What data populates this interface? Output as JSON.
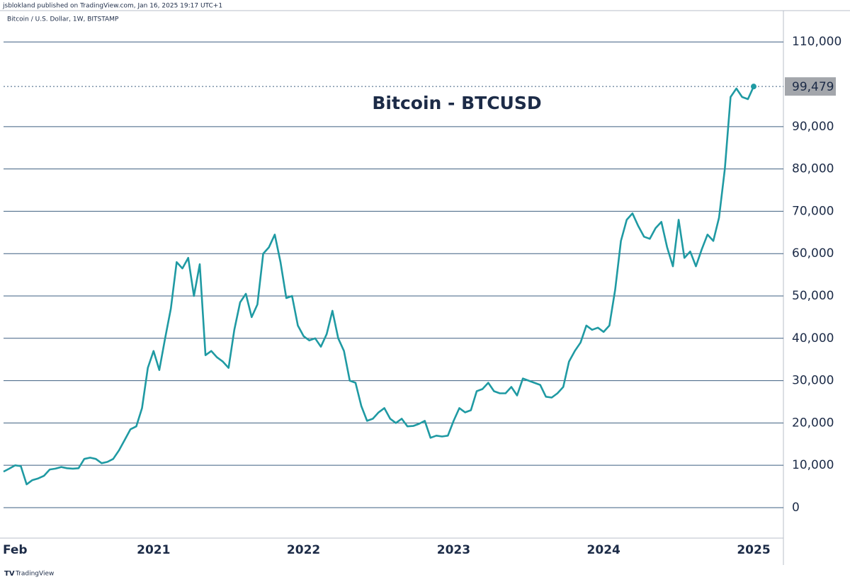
{
  "header": {
    "publisher": "jsblokland published on TradingView.com, Jan 16, 2025 19:17 UTC+1",
    "symbol": "Bitcoin / U.S. Dollar, 1W, BITSTAMP",
    "brand": "TradingView"
  },
  "chart_data": {
    "type": "line",
    "title": "Bitcoin - BTCUSD",
    "categories": [
      null,
      null,
      "Feb",
      null,
      null,
      null,
      null,
      null,
      null,
      null,
      null,
      null,
      null,
      null,
      null,
      null,
      null,
      null,
      null,
      null,
      null,
      null,
      null,
      null,
      null,
      null,
      "2021",
      null,
      null,
      null,
      null,
      null,
      null,
      null,
      null,
      null,
      null,
      null,
      null,
      null,
      null,
      null,
      null,
      null,
      null,
      null,
      null,
      null,
      null,
      null,
      null,
      null,
      "2022",
      null,
      null,
      null,
      null,
      null,
      null,
      null,
      null,
      null,
      null,
      null,
      null,
      null,
      null,
      null,
      null,
      null,
      null,
      null,
      null,
      null,
      null,
      null,
      null,
      null,
      "2023",
      null,
      null,
      null,
      null,
      null,
      null,
      null,
      null,
      null,
      null,
      null,
      null,
      null,
      null,
      null,
      null,
      null,
      null,
      null,
      null,
      null,
      null,
      null,
      null,
      null,
      "2024",
      null,
      null,
      null,
      null,
      null,
      null,
      null,
      null,
      null,
      null,
      null,
      null,
      null,
      null,
      null,
      null,
      null,
      null,
      null,
      null,
      null,
      null,
      null,
      null,
      null,
      "2025"
    ],
    "series": [
      {
        "name": "BTCUSD",
        "color": "#1f9aa3",
        "values": [
          8500,
          9200,
          10000,
          9800,
          5500,
          6500,
          6900,
          7500,
          9000,
          9200,
          9600,
          9300,
          9200,
          9300,
          11500,
          11800,
          11500,
          10500,
          10800,
          11500,
          13500,
          16000,
          18500,
          19200,
          23500,
          33000,
          37000,
          32500,
          40000,
          47000,
          58000,
          56500,
          59000,
          50000,
          57500,
          36000,
          37000,
          35500,
          34500,
          33000,
          42000,
          48500,
          50500,
          45000,
          48000,
          60000,
          61500,
          64500,
          58000,
          49500,
          50000,
          43000,
          40500,
          39500,
          40000,
          38000,
          41000,
          46500,
          40000,
          37000,
          30000,
          29500,
          24000,
          20500,
          21000,
          22500,
          23500,
          21000,
          20000,
          21000,
          19200,
          19300,
          19800,
          20500,
          16500,
          17000,
          16800,
          17000,
          20500,
          23500,
          22500,
          23000,
          27500,
          28000,
          29500,
          27500,
          27000,
          27000,
          28500,
          26500,
          30500,
          30000,
          29500,
          29000,
          26200,
          26000,
          27000,
          28500,
          34500,
          37000,
          39000,
          43000,
          42000,
          42500,
          41500,
          43000,
          51500,
          63000,
          68000,
          69500,
          66500,
          64000,
          63500,
          66000,
          67500,
          61500,
          57000,
          68000,
          59000,
          60500,
          57000,
          61000,
          64500,
          63000,
          68500,
          80000,
          97000,
          99000,
          97000,
          96500,
          99479
        ]
      }
    ],
    "last_value_label": "99,479",
    "ylim": [
      -7200,
      117400
    ],
    "yticks": [
      0,
      {
        "value": 10000,
        "label": "10,000"
      },
      {
        "value": 20000,
        "label": "20,000"
      },
      {
        "value": 30000,
        "label": "30,000"
      },
      {
        "value": 40000,
        "label": "40,000"
      },
      {
        "value": 50000,
        "label": "50,000"
      },
      {
        "value": 60000,
        "label": "60,000"
      },
      {
        "value": 70000,
        "label": "70,000"
      },
      {
        "value": 80000,
        "label": "80,000"
      },
      {
        "value": 90000,
        "label": "90,000"
      },
      {
        "value": 110000,
        "label": "110,000"
      }
    ],
    "grid": true
  }
}
